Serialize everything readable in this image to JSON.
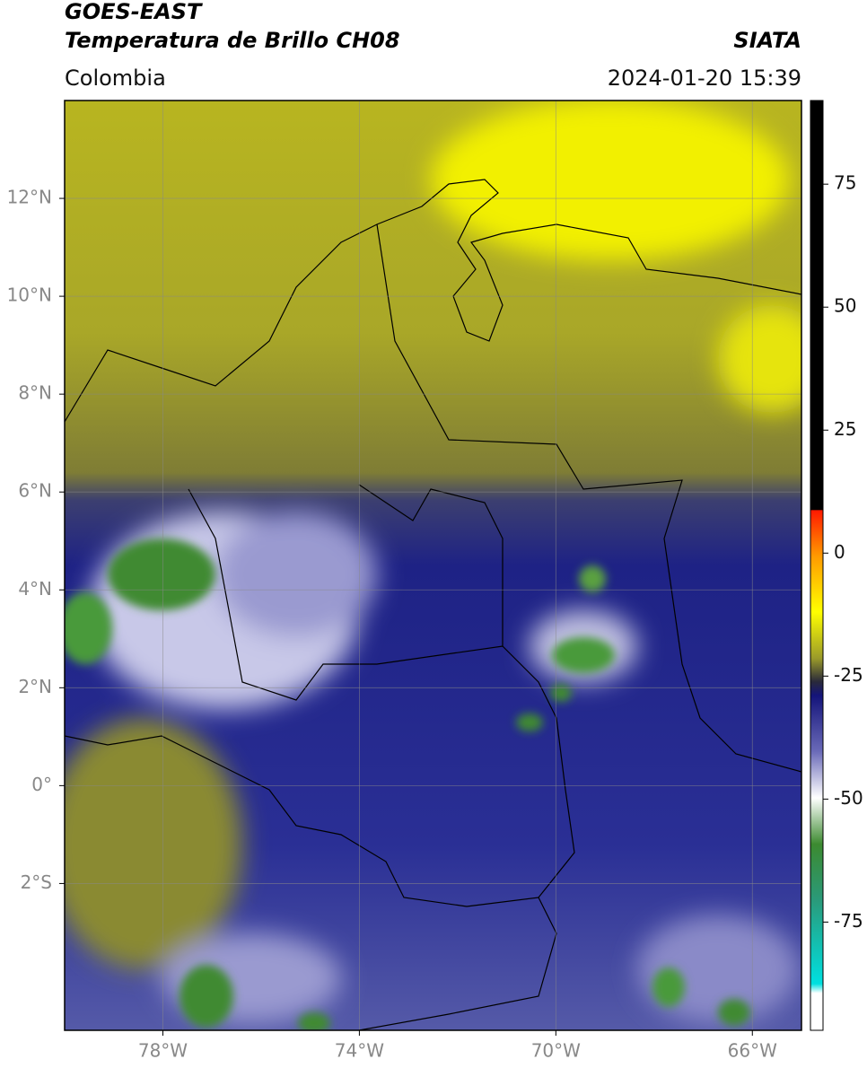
{
  "header": {
    "title": "GOES-EAST",
    "subtitle": "Temperatura de Brillo CH08",
    "region": "Colombia",
    "source": "SIATA",
    "datetime": "2024-01-20 15:39"
  },
  "map": {
    "xlim": [
      -80,
      -65
    ],
    "ylim": [
      -5,
      14
    ],
    "xticks": [
      {
        "value": -78,
        "label": "78°W"
      },
      {
        "value": -74,
        "label": "74°W"
      },
      {
        "value": -70,
        "label": "70°W"
      },
      {
        "value": -66,
        "label": "66°W"
      }
    ],
    "yticks": [
      {
        "value": 12,
        "label": "12°N"
      },
      {
        "value": 10,
        "label": "10°N"
      },
      {
        "value": 8,
        "label": "8°N"
      },
      {
        "value": 6,
        "label": "6°N"
      },
      {
        "value": 4,
        "label": "4°N"
      },
      {
        "value": 2,
        "label": "2°N"
      },
      {
        "value": 0,
        "label": "0°"
      },
      {
        "value": -2,
        "label": "2°S"
      }
    ],
    "grid": true
  },
  "colorbar": {
    "lim": [
      -97,
      92
    ],
    "ticks": [
      75,
      50,
      25,
      0,
      -25,
      -50,
      -75
    ]
  }
}
